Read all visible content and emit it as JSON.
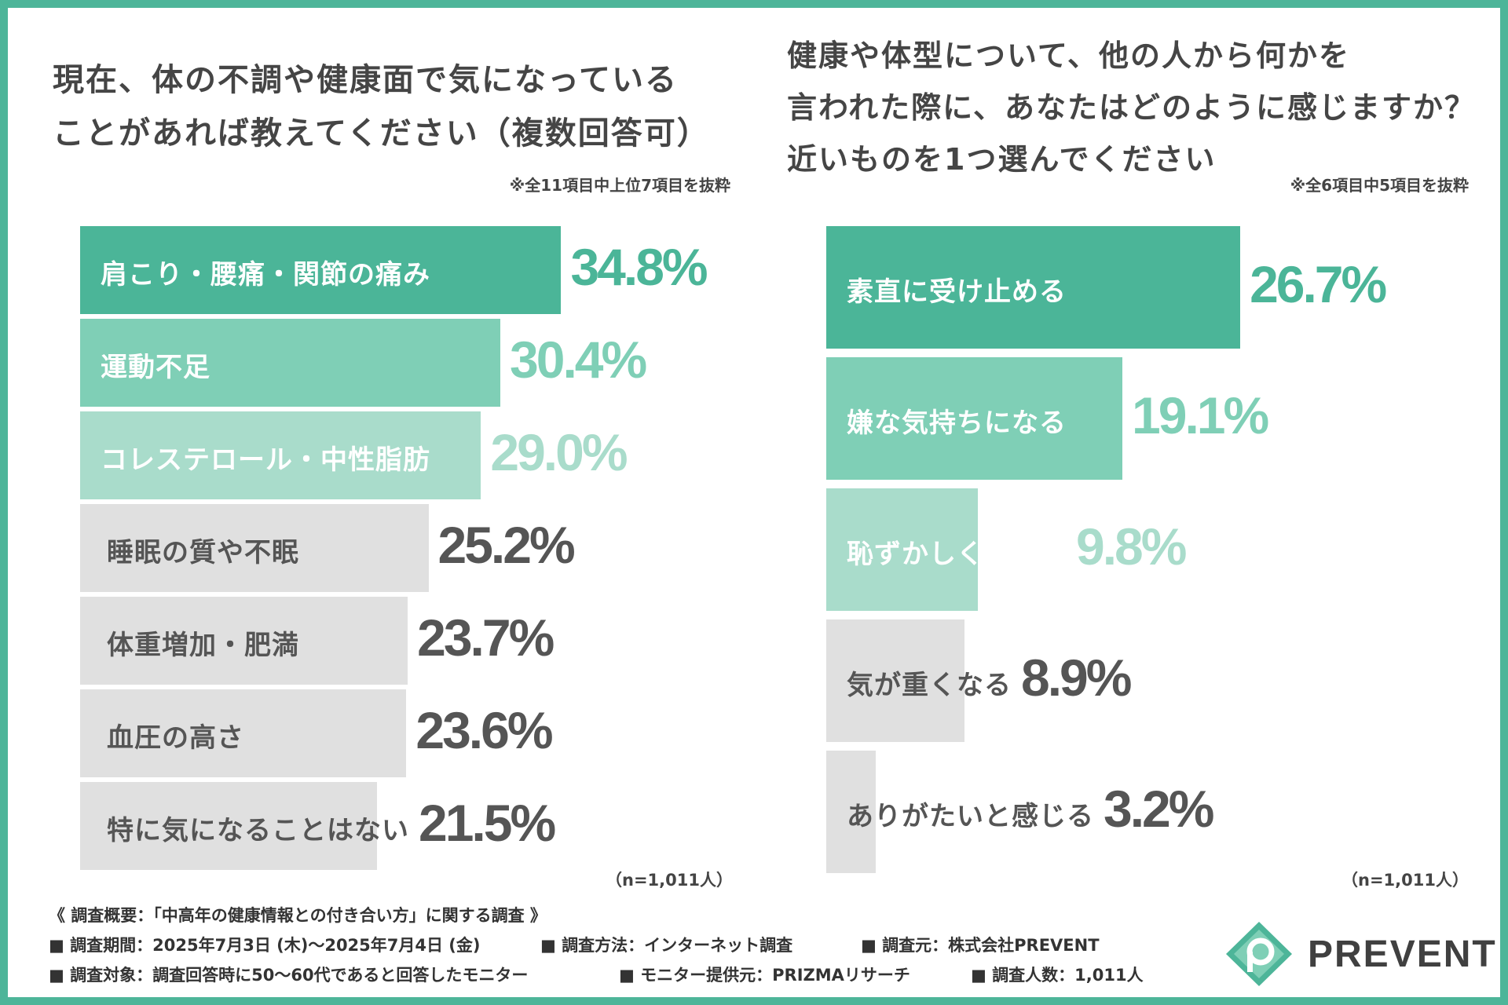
{
  "left_title_lines": [
    "現在、体の不調や健康面で気になっている",
    "ことがあれば教えてください（複数回答可）"
  ],
  "left_note": "※全11項目中上位7項目を抜粋",
  "left_n": "（n=1,011人）",
  "right_title_lines": [
    "健康や体型について、他の人から何かを",
    "言われた際に、あなたはどのように感じますか？",
    "近いものを1つ選んでください"
  ],
  "right_note": "※全6項目中5項目を抜粋",
  "right_n": "（n=1,011人）",
  "colors": {
    "dark": "#4bb598",
    "mid": "#7fcfb6",
    "light": "#a9dccb",
    "gray": "#e0e0e0",
    "gray_text": "#555555",
    "value_dark": "#4bb598",
    "value_mid": "#7fcfb6",
    "value_light": "#a9dccb"
  },
  "chart_data": [
    {
      "type": "bar",
      "orientation": "horizontal",
      "categories": [
        "肩こり・腰痛・関節の痛み",
        "運動不足",
        "コレステロール・中性脂肪",
        "睡眠の質や不眠",
        "体重増加・肥満",
        "血圧の高さ",
        "特に気になることはない"
      ],
      "values": [
        34.8,
        30.4,
        29.0,
        25.2,
        23.7,
        23.6,
        21.5
      ],
      "value_labels": [
        "34.8%",
        "30.4%",
        "29.0%",
        "25.2%",
        "23.7%",
        "23.6%",
        "21.5%"
      ],
      "styles": [
        "dark",
        "mid",
        "light",
        "gray",
        "gray",
        "gray",
        "gray"
      ],
      "title": "",
      "xlabel": "",
      "ylabel": "",
      "xlim": [
        0,
        50
      ]
    },
    {
      "type": "bar",
      "orientation": "horizontal",
      "categories": [
        "素直に受け止める",
        "嫌な気持ちになる",
        "恥ずかしく感じる",
        "気が重くなる",
        "ありがたいと感じる"
      ],
      "values": [
        26.7,
        19.1,
        9.8,
        8.9,
        3.2
      ],
      "value_labels": [
        "26.7%",
        "19.1%",
        "9.8%",
        "8.9%",
        "3.2%"
      ],
      "styles": [
        "dark",
        "mid",
        "light",
        "gray",
        "gray"
      ],
      "title": "",
      "xlabel": "",
      "ylabel": "",
      "xlim": [
        0,
        38.5
      ]
    }
  ],
  "footer": {
    "heading": "《 調査概要：「中高年の健康情報との付き合い方」に関する調査 》",
    "items_row1": [
      "■ 調査期間：2025年7月3日 (木)～2025年7月4日 (金)",
      "■ 調査方法：インターネット調査",
      "■ 調査元：株式会社PREVENT"
    ],
    "items_row2": [
      "■ 調査対象：調査回答時に50～60代であると回答したモニター",
      "■ モニター提供元：PRIZMAリサーチ",
      "■ 調査人数：1,011人"
    ]
  },
  "logo": {
    "text": "PREVENT",
    "icon": "prevent-logo-icon"
  }
}
